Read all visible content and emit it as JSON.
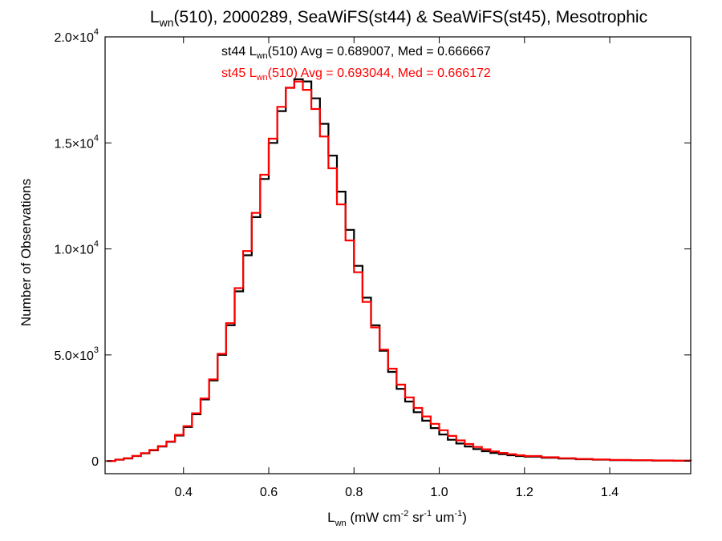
{
  "chart_data": {
    "type": "line",
    "step": true,
    "title": {
      "prefix": "L",
      "sub": "wn",
      "rest": "(510), 2000289, SeaWiFS(st44) & SeaWiFS(st45), Mesotrophic"
    },
    "xlabel": {
      "parts": [
        {
          "t": "L"
        },
        {
          "t": "wn",
          "s": "sub"
        },
        {
          "t": " (mW cm"
        },
        {
          "t": "-2",
          "s": "sup"
        },
        {
          "t": " sr"
        },
        {
          "t": "-1",
          "s": "sup"
        },
        {
          "t": " um"
        },
        {
          "t": "-1",
          "s": "sup"
        },
        {
          "t": ")"
        }
      ]
    },
    "ylabel": "Number of Observations",
    "xlim": [
      0.216,
      1.59
    ],
    "ylim": [
      -600,
      20000
    ],
    "x_ticks": [
      {
        "value": 0.4,
        "label": "0.4"
      },
      {
        "value": 0.6,
        "label": "0.6"
      },
      {
        "value": 0.8,
        "label": "0.8"
      },
      {
        "value": 1.0,
        "label": "1.0"
      },
      {
        "value": 1.2,
        "label": "1.2"
      },
      {
        "value": 1.4,
        "label": "1.4"
      }
    ],
    "y_ticks": [
      {
        "value": 0,
        "mant": "0",
        "exp": ""
      },
      {
        "value": 5000,
        "mant": "5.0×10",
        "exp": "3"
      },
      {
        "value": 10000,
        "mant": "1.0×10",
        "exp": "4"
      },
      {
        "value": 15000,
        "mant": "1.5×10",
        "exp": "4"
      },
      {
        "value": 20000,
        "mant": "2.0×10",
        "exp": "4"
      }
    ],
    "grid": false,
    "legend_position": "top-center",
    "series": [
      {
        "name": "st44",
        "color": "#000000",
        "annotation": {
          "pre": "st44 L",
          "sub": "wn",
          "post": "(510) Avg = 0.689007, Med = 0.666667"
        },
        "x": [
          0.22,
          0.24,
          0.26,
          0.28,
          0.3,
          0.32,
          0.34,
          0.36,
          0.38,
          0.4,
          0.42,
          0.44,
          0.46,
          0.48,
          0.5,
          0.52,
          0.54,
          0.56,
          0.58,
          0.6,
          0.62,
          0.64,
          0.66,
          0.68,
          0.7,
          0.72,
          0.74,
          0.76,
          0.78,
          0.8,
          0.82,
          0.84,
          0.86,
          0.88,
          0.9,
          0.92,
          0.94,
          0.96,
          0.98,
          1.0,
          1.02,
          1.04,
          1.06,
          1.08,
          1.1,
          1.12,
          1.14,
          1.16,
          1.18,
          1.2,
          1.24,
          1.28,
          1.32,
          1.36,
          1.4,
          1.45,
          1.5,
          1.55,
          1.59
        ],
        "y": [
          0,
          60,
          120,
          230,
          360,
          500,
          680,
          900,
          1200,
          1600,
          2200,
          2900,
          3800,
          5000,
          6400,
          8000,
          9700,
          11500,
          13300,
          15000,
          16500,
          17600,
          18000,
          17900,
          17100,
          15900,
          14400,
          12700,
          10900,
          9200,
          7700,
          6400,
          5200,
          4200,
          3400,
          2800,
          2300,
          1900,
          1550,
          1250,
          1000,
          820,
          680,
          560,
          460,
          380,
          320,
          270,
          230,
          200,
          150,
          110,
          80,
          60,
          40,
          30,
          20,
          10,
          5
        ]
      },
      {
        "name": "st45",
        "color": "#ff0000",
        "annotation": {
          "pre": "st45 L",
          "sub": "wn",
          "post": "(510) Avg = 0.693044, Med = 0.666172"
        },
        "x": [
          0.22,
          0.24,
          0.26,
          0.28,
          0.3,
          0.32,
          0.34,
          0.36,
          0.38,
          0.4,
          0.42,
          0.44,
          0.46,
          0.48,
          0.5,
          0.52,
          0.54,
          0.56,
          0.58,
          0.6,
          0.62,
          0.64,
          0.66,
          0.68,
          0.7,
          0.72,
          0.74,
          0.76,
          0.78,
          0.8,
          0.82,
          0.84,
          0.86,
          0.88,
          0.9,
          0.92,
          0.94,
          0.96,
          0.98,
          1.0,
          1.02,
          1.04,
          1.06,
          1.08,
          1.1,
          1.12,
          1.14,
          1.16,
          1.18,
          1.2,
          1.24,
          1.28,
          1.32,
          1.36,
          1.4,
          1.45,
          1.5,
          1.55,
          1.59
        ],
        "y": [
          0,
          60,
          130,
          240,
          370,
          520,
          700,
          920,
          1230,
          1640,
          2250,
          2950,
          3850,
          5050,
          6500,
          8150,
          9900,
          11700,
          13500,
          15200,
          16700,
          17600,
          17900,
          17500,
          16600,
          15300,
          13800,
          12100,
          10400,
          8900,
          7500,
          6300,
          5250,
          4350,
          3600,
          3000,
          2500,
          2100,
          1750,
          1450,
          1180,
          970,
          800,
          660,
          550,
          450,
          380,
          320,
          270,
          230,
          175,
          130,
          95,
          70,
          48,
          35,
          22,
          12,
          6
        ]
      }
    ]
  }
}
